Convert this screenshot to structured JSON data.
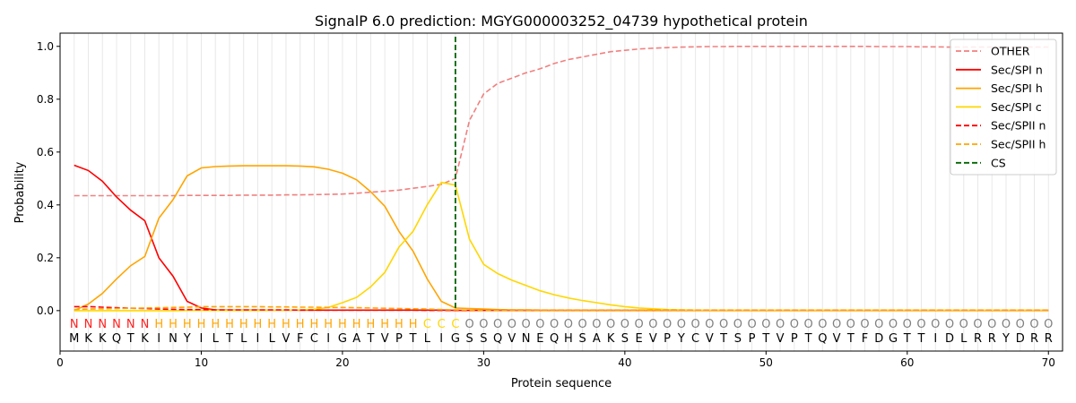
{
  "chart_data": {
    "type": "line",
    "title": "SignalP 6.0 prediction: MGYG000003252_04739 hypothetical protein",
    "xlabel": "Protein sequence",
    "ylabel": "Probability",
    "xlim": [
      0,
      71
    ],
    "ylim": [
      -0.153,
      1.05
    ],
    "xticks": [
      0,
      10,
      20,
      30,
      40,
      50,
      60,
      70
    ],
    "yticks": [
      "0.0",
      "0.2",
      "0.4",
      "0.6",
      "0.8",
      "1.0"
    ],
    "ytick_values": [
      0,
      0.2,
      0.4,
      0.6,
      0.8,
      1.0
    ],
    "legend_position": "top-right",
    "grid": "vertical lines at each residue",
    "sequence": [
      "M",
      "K",
      "K",
      "Q",
      "T",
      "K",
      "I",
      "N",
      "Y",
      "I",
      "L",
      "T",
      "L",
      "I",
      "L",
      "V",
      "F",
      "C",
      "I",
      "G",
      "A",
      "T",
      "V",
      "P",
      "T",
      "L",
      "I",
      "G",
      "S",
      "S",
      "Q",
      "V",
      "N",
      "E",
      "Q",
      "H",
      "S",
      "A",
      "K",
      "S",
      "E",
      "V",
      "P",
      "Y",
      "C",
      "V",
      "T",
      "S",
      "P",
      "T",
      "V",
      "P",
      "T",
      "Q",
      "V",
      "T",
      "F",
      "D",
      "G",
      "T",
      "T",
      "I",
      "D",
      "L",
      "R",
      "R",
      "Y",
      "D",
      "R",
      "R"
    ],
    "region_labels": [
      "N",
      "N",
      "N",
      "N",
      "N",
      "N",
      "H",
      "H",
      "H",
      "H",
      "H",
      "H",
      "H",
      "H",
      "H",
      "H",
      "H",
      "H",
      "H",
      "H",
      "H",
      "H",
      "H",
      "H",
      "H",
      "C",
      "C",
      "C",
      "O",
      "O",
      "O",
      "O",
      "O",
      "O",
      "O",
      "O",
      "O",
      "O",
      "O",
      "O",
      "O",
      "O",
      "O",
      "O",
      "O",
      "O",
      "O",
      "O",
      "O",
      "O",
      "O",
      "O",
      "O",
      "O",
      "O",
      "O",
      "O",
      "O",
      "O",
      "O",
      "O",
      "O",
      "O",
      "O",
      "O",
      "O",
      "O",
      "O",
      "O",
      "O"
    ],
    "region_colors": {
      "N": "#ff2020",
      "H": "#ffa500",
      "C": "#ffd700",
      "O": "#808080"
    },
    "cs_position": 28,
    "series": [
      {
        "name": "OTHER",
        "color": "#f08080",
        "dash": true,
        "values": [
          0.435,
          0.435,
          0.435,
          0.435,
          0.435,
          0.435,
          0.435,
          0.435,
          0.436,
          0.436,
          0.436,
          0.436,
          0.437,
          0.437,
          0.437,
          0.438,
          0.438,
          0.439,
          0.44,
          0.441,
          0.444,
          0.448,
          0.452,
          0.456,
          0.463,
          0.47,
          0.478,
          0.5,
          0.72,
          0.82,
          0.86,
          0.88,
          0.9,
          0.915,
          0.935,
          0.95,
          0.96,
          0.97,
          0.98,
          0.985,
          0.99,
          0.993,
          0.995,
          0.997,
          0.998,
          0.999,
          0.999,
          1.0,
          1.0,
          1.0,
          1.0,
          1.0,
          1.0,
          1.0,
          1.0,
          1.0,
          1.0,
          0.999,
          0.999,
          0.999,
          0.998,
          0.998,
          0.997,
          0.997,
          0.997,
          0.997,
          0.997,
          0.997,
          0.997,
          0.997
        ]
      },
      {
        "name": "Sec/SPI n",
        "color": "#ff0000",
        "dash": false,
        "values": [
          0.55,
          0.53,
          0.49,
          0.43,
          0.38,
          0.34,
          0.2,
          0.13,
          0.035,
          0.01,
          0.003,
          0.002,
          0.002,
          0.002,
          0.002,
          0.002,
          0.002,
          0.002,
          0.002,
          0.002,
          0.002,
          0.002,
          0.002,
          0.002,
          0.002,
          0.002,
          0.002,
          0.001,
          0.001,
          0.001,
          0.001,
          0.001,
          0.001,
          0.001,
          0.001,
          0.001,
          0.001,
          0.001,
          0.001,
          0.001,
          0.001,
          0.001,
          0.001,
          0.001,
          0.001,
          0.001,
          0.001,
          0.001,
          0.001,
          0.001,
          0.001,
          0.001,
          0.001,
          0.001,
          0.001,
          0.001,
          0.001,
          0.001,
          0.001,
          0.001,
          0.001,
          0.001,
          0.001,
          0.001,
          0.001,
          0.001,
          0.001,
          0.001,
          0.001,
          0.001
        ]
      },
      {
        "name": "Sec/SPI h",
        "color": "#ffa500",
        "dash": false,
        "values": [
          0.0,
          0.025,
          0.065,
          0.12,
          0.17,
          0.205,
          0.35,
          0.42,
          0.51,
          0.54,
          0.545,
          0.547,
          0.548,
          0.548,
          0.548,
          0.548,
          0.547,
          0.544,
          0.535,
          0.52,
          0.495,
          0.45,
          0.395,
          0.3,
          0.225,
          0.12,
          0.035,
          0.01,
          0.008,
          0.006,
          0.004,
          0.003,
          0.003,
          0.002,
          0.002,
          0.002,
          0.002,
          0.002,
          0.002,
          0.002,
          0.002,
          0.002,
          0.002,
          0.002,
          0.002,
          0.002,
          0.002,
          0.002,
          0.002,
          0.002,
          0.002,
          0.002,
          0.002,
          0.002,
          0.002,
          0.002,
          0.002,
          0.002,
          0.002,
          0.002,
          0.002,
          0.002,
          0.002,
          0.002,
          0.002,
          0.002,
          0.002,
          0.002,
          0.002,
          0.002
        ]
      },
      {
        "name": "Sec/SPI c",
        "color": "#ffd700",
        "dash": false,
        "values": [
          0.0,
          0.0,
          0.0,
          0.0,
          0.0,
          0.0,
          0.0,
          0.0,
          0.001,
          0.001,
          0.001,
          0.001,
          0.001,
          0.001,
          0.002,
          0.002,
          0.003,
          0.005,
          0.012,
          0.03,
          0.05,
          0.09,
          0.145,
          0.24,
          0.3,
          0.4,
          0.485,
          0.475,
          0.27,
          0.175,
          0.14,
          0.115,
          0.095,
          0.075,
          0.06,
          0.048,
          0.038,
          0.03,
          0.022,
          0.015,
          0.01,
          0.007,
          0.004,
          0.003,
          0.002,
          0.002,
          0.002,
          0.002,
          0.002,
          0.002,
          0.002,
          0.002,
          0.002,
          0.002,
          0.002,
          0.002,
          0.002,
          0.002,
          0.002,
          0.002,
          0.002,
          0.002,
          0.002,
          0.002,
          0.002,
          0.002,
          0.002,
          0.002,
          0.002,
          0.002
        ]
      },
      {
        "name": "Sec/SPII n",
        "color": "#ff0000",
        "dash": true,
        "values": [
          0.015,
          0.015,
          0.013,
          0.011,
          0.009,
          0.008,
          0.006,
          0.005,
          0.004,
          0.004,
          0.003,
          0.003,
          0.003,
          0.003,
          0.003,
          0.003,
          0.002,
          0.002,
          0.002,
          0.002,
          0.002,
          0.002,
          0.002,
          0.002,
          0.002,
          0.001,
          0.001,
          0.001,
          0.001,
          0.001,
          0.001,
          0.001,
          0.001,
          0.001,
          0.001,
          0.001,
          0.001,
          0.001,
          0.001,
          0.001,
          0.001,
          0.001,
          0.001,
          0.001,
          0.001,
          0.001,
          0.001,
          0.001,
          0.001,
          0.001,
          0.001,
          0.001,
          0.001,
          0.001,
          0.001,
          0.001,
          0.001,
          0.001,
          0.001,
          0.001,
          0.001,
          0.001,
          0.001,
          0.001,
          0.001,
          0.001,
          0.001,
          0.001,
          0.001,
          0.001
        ]
      },
      {
        "name": "Sec/SPII h",
        "color": "#ffa500",
        "dash": true,
        "values": [
          0.004,
          0.006,
          0.007,
          0.008,
          0.009,
          0.01,
          0.011,
          0.012,
          0.013,
          0.015,
          0.015,
          0.015,
          0.015,
          0.015,
          0.014,
          0.014,
          0.013,
          0.013,
          0.012,
          0.012,
          0.011,
          0.01,
          0.009,
          0.008,
          0.007,
          0.006,
          0.004,
          0.003,
          0.002,
          0.001,
          0.001,
          0.001,
          0.001,
          0.001,
          0.001,
          0.001,
          0.001,
          0.001,
          0.001,
          0.001,
          0.001,
          0.001,
          0.001,
          0.001,
          0.001,
          0.001,
          0.001,
          0.001,
          0.001,
          0.001,
          0.001,
          0.001,
          0.001,
          0.001,
          0.001,
          0.001,
          0.001,
          0.001,
          0.001,
          0.001,
          0.001,
          0.001,
          0.001,
          0.001,
          0.001,
          0.001,
          0.001,
          0.001,
          0.001,
          0.001
        ]
      }
    ],
    "legend": [
      {
        "label": "OTHER",
        "color": "#f08080",
        "dash": true
      },
      {
        "label": "Sec/SPI n",
        "color": "#ff0000",
        "dash": false
      },
      {
        "label": "Sec/SPI h",
        "color": "#ffa500",
        "dash": false
      },
      {
        "label": "Sec/SPI c",
        "color": "#ffd700",
        "dash": false
      },
      {
        "label": "Sec/SPII n",
        "color": "#ff0000",
        "dash": true
      },
      {
        "label": "Sec/SPII h",
        "color": "#ffa500",
        "dash": true
      },
      {
        "label": "CS",
        "color": "#006400",
        "dash": true
      }
    ]
  }
}
